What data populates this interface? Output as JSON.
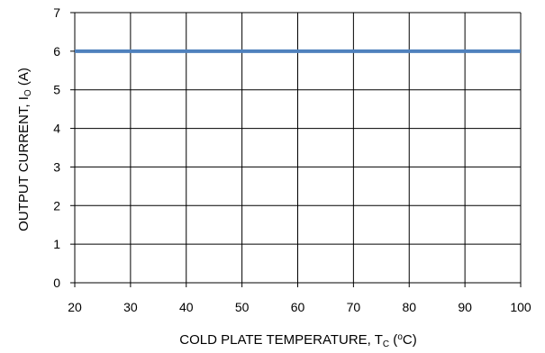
{
  "chart_data": {
    "type": "line",
    "title": "",
    "xlabel": "COLD PLATE TEMPERATURE, Tc (°C)",
    "ylabel": "OUTPUT CURRENT, IO (A)",
    "xlabel_parts": {
      "pre": "COLD PLATE TEMPERATURE, T",
      "sub": "C",
      "post": " (",
      "deg": "o",
      "post2": "C)"
    },
    "ylabel_parts": {
      "pre": "OUTPUT CURRENT, I",
      "sub": "O",
      "post": " (A)"
    },
    "xlim": [
      20,
      100
    ],
    "ylim": [
      0,
      7
    ],
    "xticks": [
      20,
      30,
      40,
      50,
      60,
      70,
      80,
      90,
      100
    ],
    "yticks": [
      0,
      1,
      2,
      3,
      4,
      5,
      6,
      7
    ],
    "grid": true,
    "legend": "none",
    "series": [
      {
        "x": [
          20,
          100
        ],
        "y": [
          6,
          6
        ],
        "color": "#4f81bd"
      }
    ]
  }
}
